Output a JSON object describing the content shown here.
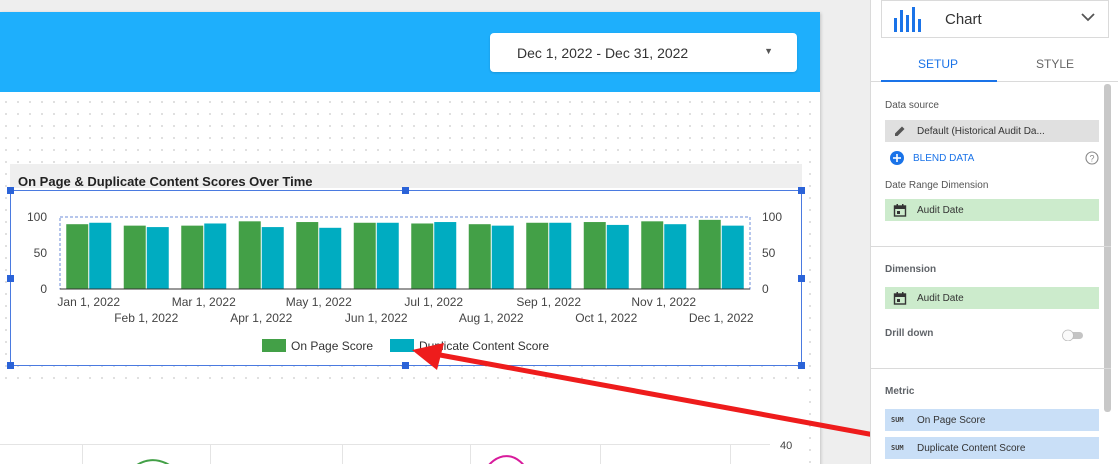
{
  "date_range": {
    "label": "Dec 1, 2022 - Dec 31, 2022"
  },
  "chart": {
    "title": "On Page & Duplicate Content Scores Over Time"
  },
  "chart_data": {
    "type": "bar",
    "title": "On Page & Duplicate Content Scores Over Time",
    "categories": [
      "Jan 1, 2022",
      "Feb 1, 2022",
      "Mar 1, 2022",
      "Apr 1, 2022",
      "May 1, 2022",
      "Jun 1, 2022",
      "Jul 1, 2022",
      "Aug 1, 2022",
      "Sep 1, 2022",
      "Oct 1, 2022",
      "Nov 1, 2022",
      "Dec 1, 2022"
    ],
    "series": [
      {
        "name": "On Page Score",
        "values": [
          90,
          88,
          88,
          94,
          93,
          92,
          91,
          90,
          92,
          93,
          94,
          96
        ],
        "color": "#43a047"
      },
      {
        "name": "Duplicate Content Score",
        "values": [
          92,
          86,
          91,
          86,
          85,
          92,
          93,
          88,
          92,
          89,
          90,
          88
        ],
        "color": "#00acc1"
      }
    ],
    "y_ticks": [
      "100",
      "50",
      "0"
    ],
    "y_right_ticks": [
      "100",
      "50",
      "0"
    ],
    "ylim": [
      0,
      100
    ],
    "legend_position": "bottom",
    "grid": false
  },
  "second_chart": {
    "axis_label": "40"
  },
  "panel": {
    "chart_type": "Chart",
    "tabs": [
      "SETUP",
      "STYLE"
    ],
    "data_source_label": "Data source",
    "data_source_value": "Default (Historical Audit Da...",
    "blend_label": "BLEND DATA",
    "date_range_dimension_label": "Date Range Dimension",
    "date_range_dimension_value": "Audit Date",
    "dimension_label": "Dimension",
    "dimension_value": "Audit Date",
    "drill_down_label": "Drill down",
    "metric_label": "Metric",
    "metric_agg": "SUM",
    "metrics": [
      "On Page Score",
      "Duplicate Content Score"
    ],
    "colors": {
      "accent": "#1a73e8",
      "header": "#1eaffc",
      "dimension_bg": "#ccebcc",
      "metric_bg": "#c9dff7"
    }
  },
  "icons": {
    "chart_type": "bar-chart-icon",
    "caret": "chevron-down-icon",
    "edit": "pencil-icon",
    "add": "add-circle-icon",
    "help": "help-icon",
    "calendar": "calendar-icon"
  }
}
